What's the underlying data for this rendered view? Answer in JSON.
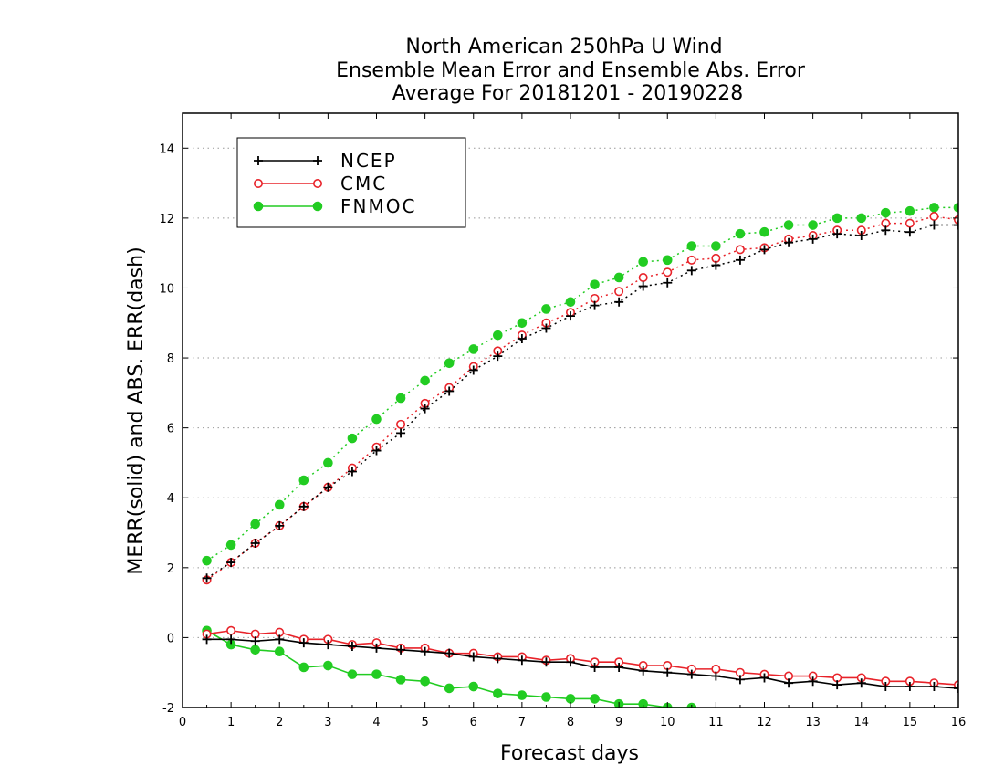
{
  "chart_data": {
    "type": "line",
    "title_lines": [
      "North American 250hPa U Wind",
      "Ensemble Mean Error and Ensemble Abs. Error",
      "Average For 20181201 - 20190228"
    ],
    "xlabel": "Forecast days",
    "ylabel": "MERR(solid) and ABS. ERR(dash)",
    "xlim": [
      0,
      16
    ],
    "ylim": [
      -2,
      15
    ],
    "xticks": [
      0,
      1,
      2,
      3,
      4,
      5,
      6,
      7,
      8,
      9,
      10,
      11,
      12,
      13,
      14,
      15,
      16
    ],
    "yticks": [
      -2,
      0,
      2,
      4,
      6,
      8,
      10,
      12,
      14
    ],
    "grid": "horizontal dotted",
    "legend_position": "top-left",
    "x": [
      0.5,
      1,
      1.5,
      2,
      2.5,
      3,
      3.5,
      4,
      4.5,
      5,
      5.5,
      6,
      6.5,
      7,
      7.5,
      8,
      8.5,
      9,
      9.5,
      10,
      10.5,
      11,
      11.5,
      12,
      12.5,
      13,
      13.5,
      14,
      14.5,
      15,
      15.5,
      16
    ],
    "series": [
      {
        "name": "NCEP",
        "color": "#000000",
        "marker": "plus",
        "merr": [
          -0.05,
          -0.05,
          -0.1,
          -0.05,
          -0.15,
          -0.2,
          -0.25,
          -0.3,
          -0.35,
          -0.4,
          -0.45,
          -0.55,
          -0.6,
          -0.65,
          -0.7,
          -0.7,
          -0.85,
          -0.85,
          -0.95,
          -1.0,
          -1.05,
          -1.1,
          -1.2,
          -1.15,
          -1.3,
          -1.25,
          -1.35,
          -1.3,
          -1.4,
          -1.4,
          -1.4,
          -1.45
        ],
        "abserr": [
          1.7,
          2.15,
          2.7,
          3.2,
          3.75,
          4.3,
          4.75,
          5.35,
          5.85,
          6.55,
          7.05,
          7.65,
          8.05,
          8.55,
          8.85,
          9.2,
          9.5,
          9.6,
          10.05,
          10.15,
          10.5,
          10.65,
          10.8,
          11.1,
          11.3,
          11.4,
          11.55,
          11.5,
          11.65,
          11.6,
          11.8,
          11.8
        ]
      },
      {
        "name": "CMC",
        "color": "#e8232a",
        "marker": "open-circle",
        "merr": [
          0.1,
          0.2,
          0.1,
          0.15,
          -0.05,
          -0.05,
          -0.2,
          -0.15,
          -0.3,
          -0.3,
          -0.45,
          -0.45,
          -0.55,
          -0.55,
          -0.65,
          -0.6,
          -0.7,
          -0.7,
          -0.8,
          -0.8,
          -0.9,
          -0.9,
          -1.0,
          -1.05,
          -1.1,
          -1.1,
          -1.15,
          -1.15,
          -1.25,
          -1.25,
          -1.3,
          -1.35
        ],
        "abserr": [
          1.65,
          2.15,
          2.7,
          3.2,
          3.75,
          4.3,
          4.85,
          5.45,
          6.1,
          6.7,
          7.15,
          7.75,
          8.2,
          8.65,
          9.0,
          9.3,
          9.7,
          9.9,
          10.3,
          10.45,
          10.8,
          10.85,
          11.1,
          11.15,
          11.4,
          11.5,
          11.65,
          11.65,
          11.85,
          11.85,
          12.05,
          11.95
        ]
      },
      {
        "name": "FNMOC",
        "color": "#22cc22",
        "marker": "filled-circle",
        "merr": [
          0.2,
          -0.2,
          -0.35,
          -0.4,
          -0.85,
          -0.8,
          -1.05,
          -1.05,
          -1.2,
          -1.25,
          -1.45,
          -1.4,
          -1.6,
          -1.65,
          -1.7,
          -1.75,
          -1.75,
          -1.9,
          -1.9,
          -2.0,
          -2.0
        ],
        "abserr": [
          2.2,
          2.65,
          3.25,
          3.8,
          4.5,
          5.0,
          5.7,
          6.25,
          6.85,
          7.35,
          7.85,
          8.25,
          8.65,
          9.0,
          9.4,
          9.6,
          10.1,
          10.3,
          10.75,
          10.8,
          11.2,
          11.2,
          11.55,
          11.6,
          11.8,
          11.8,
          12.0,
          12.0,
          12.15,
          12.2,
          12.3,
          12.3
        ]
      }
    ]
  }
}
